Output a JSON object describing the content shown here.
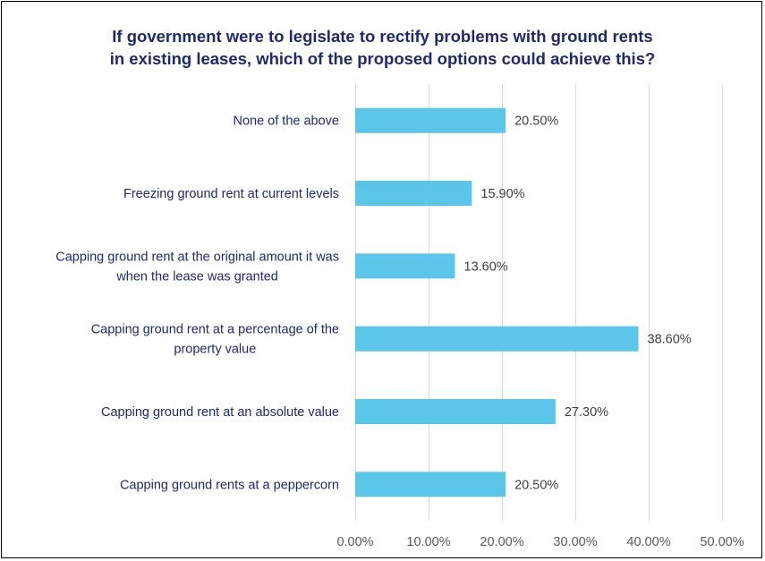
{
  "chart_data": {
    "type": "bar",
    "orientation": "horizontal",
    "title_lines": [
      "If government were to legislate to rectify problems with ground rents",
      "in existing leases, which of the proposed options could achieve this?"
    ],
    "categories": [
      [
        "None of the above"
      ],
      [
        "Freezing ground rent at current levels"
      ],
      [
        "Capping ground rent at the original amount it was",
        "when the lease was granted"
      ],
      [
        "Capping ground rent at a percentage of the",
        "property value"
      ],
      [
        "Capping ground rent at an absolute value"
      ],
      [
        "Capping ground rents at a peppercorn"
      ]
    ],
    "values": [
      20.5,
      15.9,
      13.6,
      38.6,
      27.3,
      20.5
    ],
    "value_labels": [
      "20.50%",
      "15.90%",
      "13.60%",
      "38.60%",
      "27.30%",
      "20.50%"
    ],
    "xlim": [
      0,
      50
    ],
    "x_ticks": [
      0,
      10,
      20,
      30,
      40,
      50
    ],
    "x_tick_labels": [
      "0.00%",
      "10.00%",
      "20.00%",
      "30.00%",
      "40.00%",
      "50.00%"
    ],
    "grid": "vertical",
    "legend": "none",
    "bar_color": "#5bc5ea",
    "title_color": "#1f2a6b",
    "category_color": "#1f2a6b"
  }
}
